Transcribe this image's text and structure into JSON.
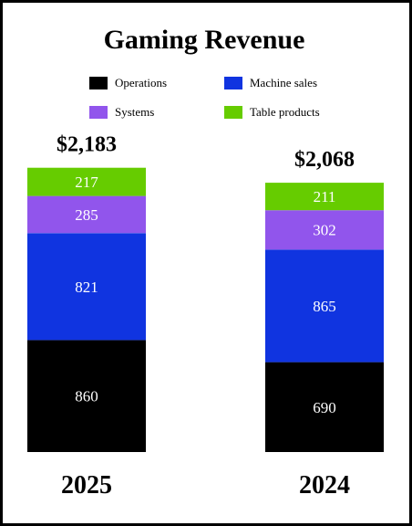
{
  "chart_data": {
    "type": "bar",
    "stacked": true,
    "title": "Gaming Revenue",
    "categories": [
      "2025",
      "2024"
    ],
    "totals": [
      "$2,183",
      "$2,068"
    ],
    "series": [
      {
        "name": "Operations",
        "color": "#000000",
        "values": [
          860,
          690
        ]
      },
      {
        "name": "Machine sales",
        "color": "#1034e0",
        "values": [
          821,
          865
        ]
      },
      {
        "name": "Systems",
        "color": "#9155ec",
        "values": [
          285,
          302
        ]
      },
      {
        "name": "Table products",
        "color": "#66cc00",
        "values": [
          217,
          211
        ]
      }
    ],
    "legend_position": "top",
    "grid": false,
    "xlabel": "",
    "ylabel": ""
  }
}
